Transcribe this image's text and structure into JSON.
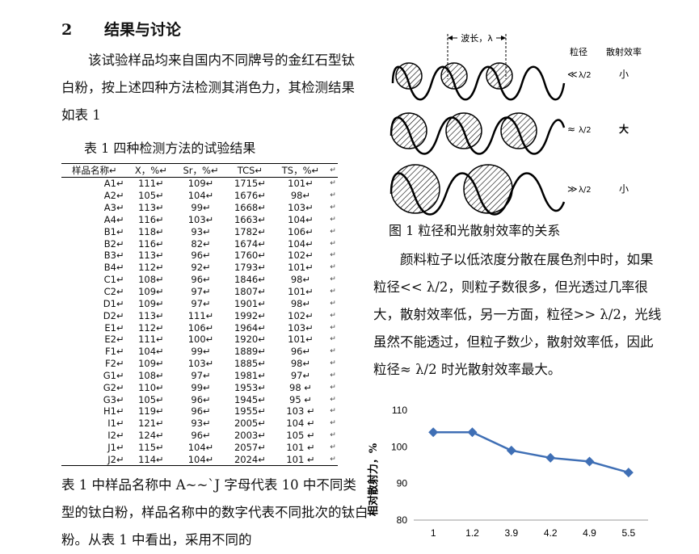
{
  "section": {
    "number": "2",
    "title": "结果与讨论"
  },
  "intro_text": "该试验样品均来自国内不同牌号的金红石型钛白粉，按上述四种方法检测其消色力，其检测结果如表 1",
  "table": {
    "caption": "表 1  四种检测方法的试验结果",
    "headers": [
      "样品名称↵",
      "X，%↵",
      "Sr，%↵",
      "TCS↵",
      "TS，%↵"
    ],
    "rows": [
      [
        "A1↵",
        "111↵",
        "109↵",
        "1715↵",
        "101↵"
      ],
      [
        "A2↵",
        "105↵",
        "104↵",
        "1676↵",
        "98↵"
      ],
      [
        "A3↵",
        "113↵",
        "99↵",
        "1668↵",
        "103↵"
      ],
      [
        "A4↵",
        "116↵",
        "103↵",
        "1663↵",
        "104↵"
      ],
      [
        "B1↵",
        "118↵",
        "93↵",
        "1782↵",
        "106↵"
      ],
      [
        "B2↵",
        "116↵",
        "82↵",
        "1674↵",
        "104↵"
      ],
      [
        "B3↵",
        "113↵",
        "96↵",
        "1760↵",
        "102↵"
      ],
      [
        "B4↵",
        "112↵",
        "92↵",
        "1793↵",
        "101↵"
      ],
      [
        "C1↵",
        "108↵",
        "96↵",
        "1846↵",
        "98↵"
      ],
      [
        "C2↵",
        "109↵",
        "97↵",
        "1807↵",
        "101↵"
      ],
      [
        "D1↵",
        "109↵",
        "97↵",
        "1901↵",
        "98↵"
      ],
      [
        "D2↵",
        "113↵",
        "111↵",
        "1992↵",
        "102↵"
      ],
      [
        "E1↵",
        "112↵",
        "106↵",
        "1964↵",
        "103↵"
      ],
      [
        "E2↵",
        "111↵",
        "100↵",
        "1920↵",
        "101↵"
      ],
      [
        "F1↵",
        "104↵",
        "99↵",
        "1889↵",
        "96↵"
      ],
      [
        "F2↵",
        "109↵",
        "103↵",
        "1885↵",
        "98↵"
      ],
      [
        "G1↵",
        "108↵",
        "97↵",
        "1981↵",
        "97↵"
      ],
      [
        "G2↵",
        "110↵",
        "99↵",
        "1953↵",
        "98 ↵"
      ],
      [
        "G3↵",
        "105↵",
        "96↵",
        "1945↵",
        "95 ↵"
      ],
      [
        "H1↵",
        "119↵",
        "96↵",
        "1955↵",
        "103 ↵"
      ],
      [
        "I1↵",
        "121↵",
        "93↵",
        "2005↵",
        "104 ↵"
      ],
      [
        "I2↵",
        "124↵",
        "96↵",
        "2003↵",
        "105 ↵"
      ],
      [
        "J1↵",
        "115↵",
        "104↵",
        "2057↵",
        "101 ↵"
      ],
      [
        "J2↵",
        "114↵",
        "104↵",
        "2024↵",
        "101 ↵"
      ]
    ],
    "row_end_mark": "↵"
  },
  "after_table_text": "表 1 中样品名称中 A~~`J 字母代表 10 中不同类型的钛白粉，样品名称中的数字代表不同批次的钛白粉。从表 1 中看出，采用不同的",
  "figure1": {
    "caption": "图 1  粒径和光散射效率的关系",
    "wavelength_label": "波长，λ",
    "col_particle": "粒径",
    "col_efficiency": "散射效率",
    "rows": [
      {
        "relation": "≪",
        "fraction": "λ/2",
        "efficiency": "小"
      },
      {
        "relation": "≈",
        "fraction": "λ/2",
        "efficiency": "大"
      },
      {
        "relation": "≫",
        "fraction": "λ/2",
        "efficiency": "小"
      }
    ]
  },
  "discussion_text": "颜料粒子以低浓度分散在展色剂中时，如果粒径<< λ/2，则粒子数很多，但光透过几率很大，散射效率低，另一方面，粒径>> λ/2，光线虽然不能透过，但粒子数少，散射效率低，因此粒径≈ λ/2 时光散射效率最大。",
  "chart_data": {
    "type": "line",
    "ylabel": "相对散射力，%",
    "xlabel": "",
    "categories": [
      "1",
      "1.2",
      "3.9",
      "4.2",
      "4.9",
      "5.5"
    ],
    "series": [
      {
        "values": [
          104,
          104,
          99,
          97,
          96,
          93
        ]
      }
    ],
    "ylim": [
      80,
      110
    ],
    "yticks": [
      80,
      90,
      100,
      110
    ],
    "grid": false,
    "legend": "none",
    "line_color": "#3f6fb5",
    "marker": "diamond"
  }
}
